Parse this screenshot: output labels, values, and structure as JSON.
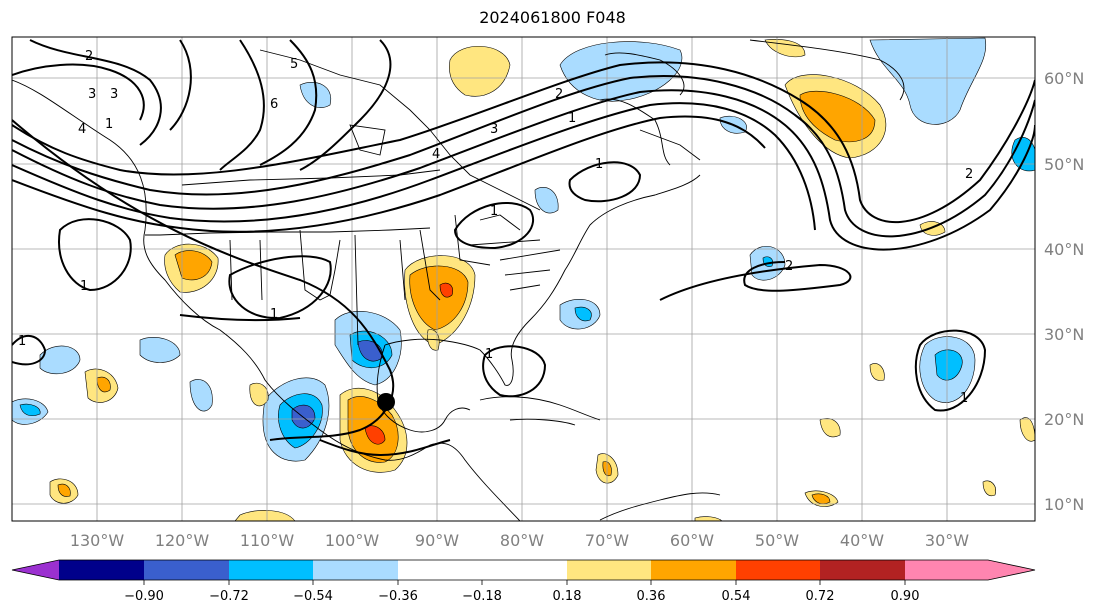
{
  "title": "2024061800 F048",
  "lon_labels": [
    "130°W",
    "120°W",
    "110°W",
    "100°W",
    "90°W",
    "80°W",
    "70°W",
    "60°W",
    "50°W",
    "40°W",
    "30°W"
  ],
  "lat_labels": [
    "60°N",
    "50°N",
    "40°N",
    "30°N",
    "20°N",
    "10°N"
  ],
  "colorbar": {
    "ticks": [
      "−0.90",
      "−0.72",
      "−0.54",
      "−0.36",
      "−0.18",
      "0.18",
      "0.36",
      "0.54",
      "0.72",
      "0.90"
    ],
    "colors": [
      "#9b30d0",
      "#00008b",
      "#3a5fcd",
      "#00bfff",
      "#aadcff",
      "#ffffff",
      "#ffe680",
      "#ffa500",
      "#ff4000",
      "#b22222",
      "#ff85b0"
    ]
  },
  "contour_labels": [
    "1",
    "1",
    "2",
    "3",
    "4",
    "5",
    "6",
    "4",
    "3",
    "2",
    "1",
    "1",
    "1",
    "2",
    "1",
    "3",
    "1",
    "1",
    "2",
    "1"
  ],
  "marker": "storm-center"
}
